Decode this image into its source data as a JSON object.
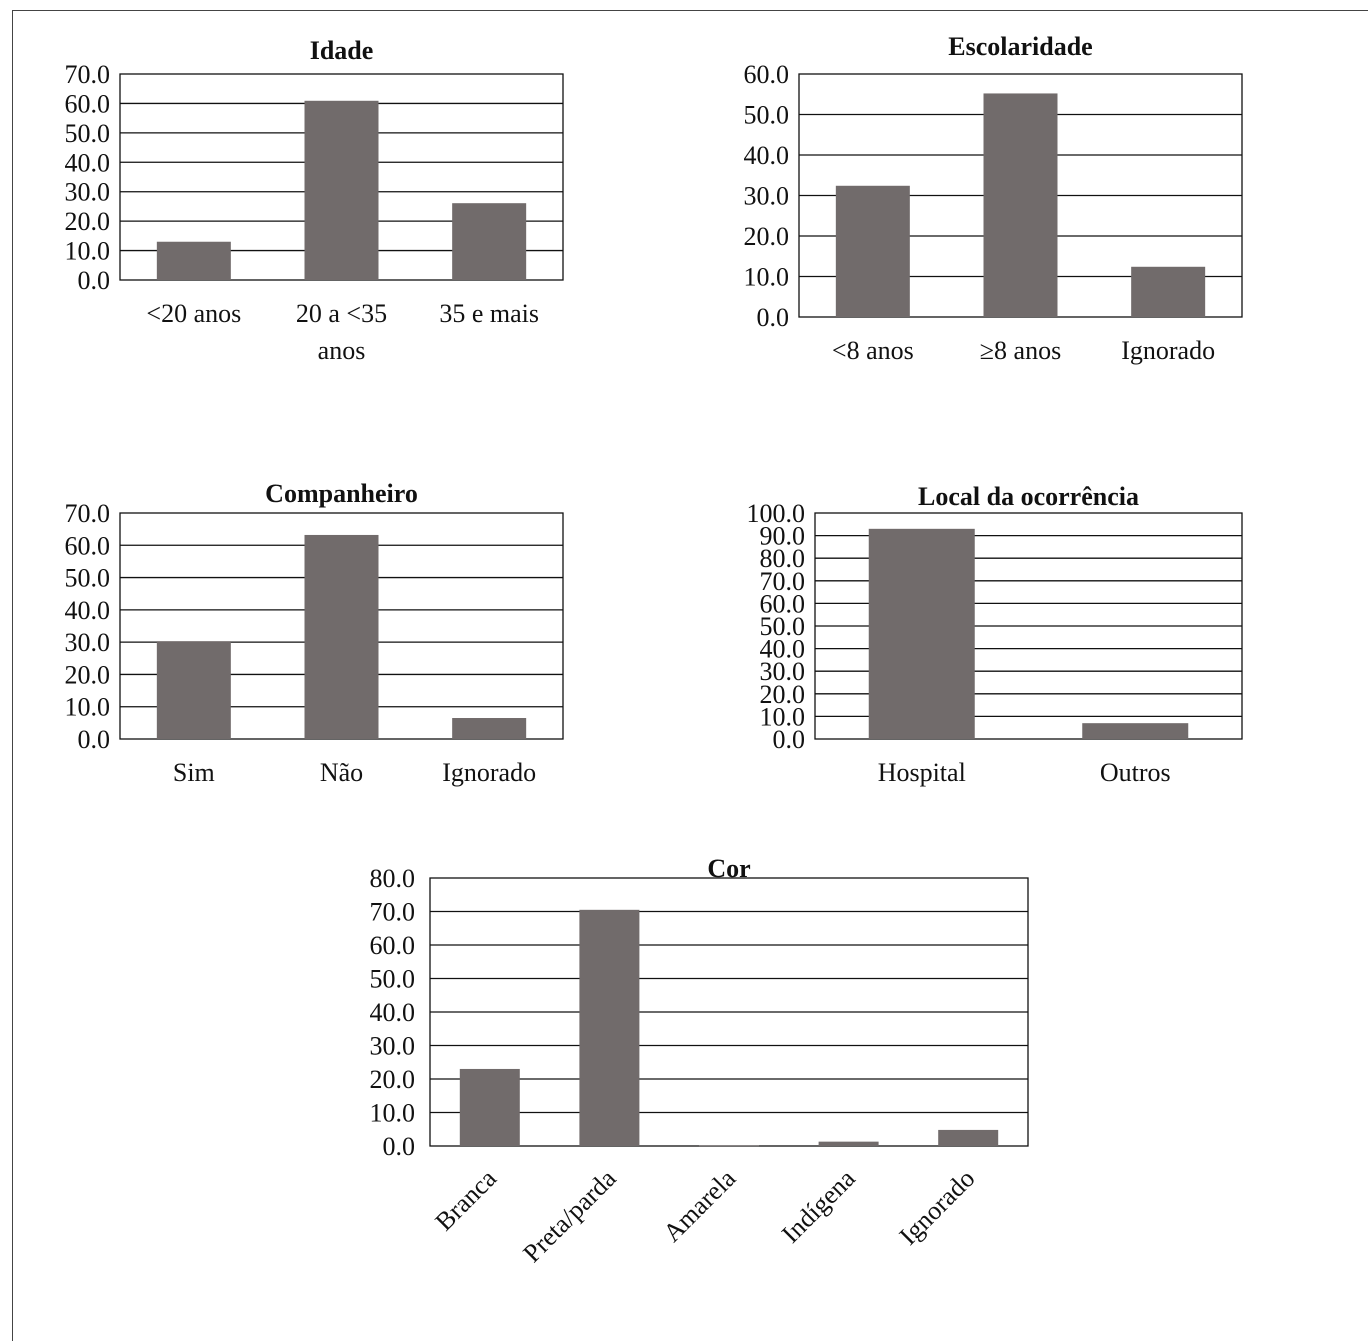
{
  "colors": {
    "bar": "#716b6b",
    "grid": "#111111",
    "text": "#111111"
  },
  "chart_data": [
    {
      "id": "idade",
      "type": "bar",
      "title": "Idade",
      "categories": [
        [
          "<20 anos"
        ],
        [
          "20 a <35",
          "anos"
        ],
        [
          "35 e mais"
        ]
      ],
      "values": [
        13.0,
        60.9,
        26.1
      ],
      "ylim": [
        0,
        70
      ],
      "yticks": [
        "0.0",
        "10.0",
        "20.0",
        "30.0",
        "40.0",
        "50.0",
        "60.0",
        "70.0"
      ],
      "grid": true,
      "xlabel": "",
      "ylabel": ""
    },
    {
      "id": "escolaridade",
      "type": "bar",
      "title": "Escolaridade",
      "categories": [
        [
          "<8 anos"
        ],
        [
          "≥8 anos"
        ],
        [
          "Ignorado"
        ]
      ],
      "values": [
        32.4,
        55.2,
        12.4
      ],
      "ylim": [
        0,
        60
      ],
      "yticks": [
        "0.0",
        "10.0",
        "20.0",
        "30.0",
        "40.0",
        "50.0",
        "60.0"
      ],
      "grid": true,
      "xlabel": "",
      "ylabel": ""
    },
    {
      "id": "companheiro",
      "type": "bar",
      "title": "Companheiro",
      "categories": [
        [
          "Sim"
        ],
        [
          "Não"
        ],
        [
          "Ignorado"
        ]
      ],
      "values": [
        30.3,
        63.2,
        6.5
      ],
      "ylim": [
        0,
        70
      ],
      "yticks": [
        "0.0",
        "10.0",
        "20.0",
        "30.0",
        "40.0",
        "50.0",
        "60.0",
        "70.0"
      ],
      "grid": true,
      "xlabel": "",
      "ylabel": ""
    },
    {
      "id": "local",
      "type": "bar",
      "title": "Local da ocorrência",
      "categories": [
        [
          "Hospital"
        ],
        [
          "Outros"
        ]
      ],
      "values": [
        93.0,
        7.0
      ],
      "ylim": [
        0,
        100
      ],
      "yticks": [
        "0.0",
        "10.0",
        "20.0",
        "30.0",
        "40.0",
        "50.0",
        "60.0",
        "70.0",
        "80.0",
        "90.0",
        "100.0"
      ],
      "grid": true,
      "xlabel": "",
      "ylabel": ""
    },
    {
      "id": "cor",
      "type": "bar",
      "title": "Cor",
      "categories": [
        [
          "Branca"
        ],
        [
          "Preta/parda"
        ],
        [
          "Amarela"
        ],
        [
          "Indígena"
        ],
        [
          "Ignorado"
        ]
      ],
      "values": [
        23.0,
        70.5,
        0.2,
        1.3,
        4.8
      ],
      "ylim": [
        0,
        80
      ],
      "yticks": [
        "0.0",
        "10.0",
        "20.0",
        "30.0",
        "40.0",
        "50.0",
        "60.0",
        "70.0",
        "80.0"
      ],
      "grid": true,
      "rotated_labels": true,
      "xlabel": "",
      "ylabel": ""
    }
  ]
}
